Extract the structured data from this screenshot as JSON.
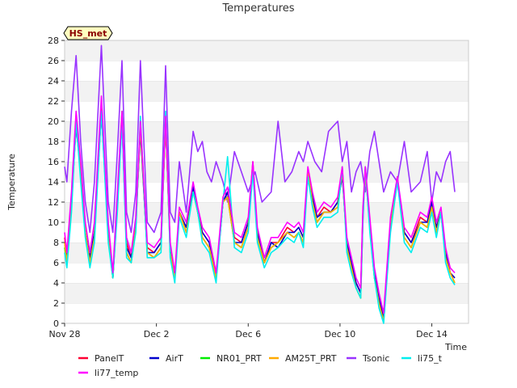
{
  "chart_data": {
    "type": "line",
    "title": "Temperatures",
    "xlabel": "Time",
    "ylabel": "Temperature",
    "badge": "HS_met",
    "xlim": [
      0,
      17.6
    ],
    "ylim": [
      0,
      28
    ],
    "yticks": [
      0,
      2,
      4,
      6,
      8,
      10,
      12,
      14,
      16,
      18,
      20,
      22,
      24,
      26,
      28
    ],
    "xticks": [
      {
        "x": 0,
        "label": "Nov 28"
      },
      {
        "x": 4,
        "label": "Dec 2"
      },
      {
        "x": 8,
        "label": "Dec 6"
      },
      {
        "x": 12,
        "label": "Dec 10"
      },
      {
        "x": 16,
        "label": "Dec 14"
      }
    ],
    "grid": "horizontal-bands",
    "legend_position": "bottom",
    "base_x": [
      0.0,
      0.1,
      0.3,
      0.5,
      0.7,
      0.9,
      1.1,
      1.3,
      1.6,
      1.9,
      2.1,
      2.3,
      2.5,
      2.7,
      2.9,
      3.1,
      3.3,
      3.6,
      3.9,
      4.2,
      4.4,
      4.6,
      4.8,
      5.0,
      5.3,
      5.6,
      5.8,
      6.0,
      6.3,
      6.6,
      6.9,
      7.1,
      7.4,
      7.7,
      8.0,
      8.2,
      8.4,
      8.7,
      9.0,
      9.3,
      9.7,
      10.0,
      10.2,
      10.4,
      10.6,
      10.8,
      11.0,
      11.3,
      11.6,
      11.9,
      12.1,
      12.3,
      12.5,
      12.7,
      12.9,
      13.0,
      13.1,
      13.3,
      13.5,
      13.7,
      13.9,
      14.2,
      14.5,
      14.8,
      15.1,
      15.5,
      15.8,
      16.0,
      16.2,
      16.4,
      16.6,
      16.8,
      17.0
    ],
    "tsonic_x": [
      0.0,
      0.1,
      0.3,
      0.5,
      0.7,
      0.9,
      1.1,
      1.3,
      1.6,
      1.9,
      2.1,
      2.3,
      2.5,
      2.7,
      2.9,
      3.1,
      3.3,
      3.6,
      3.9,
      4.2,
      4.4,
      4.6,
      4.8,
      5.0,
      5.3,
      5.6,
      5.8,
      6.0,
      6.2,
      6.4,
      6.6,
      6.9,
      7.1,
      7.4,
      7.7,
      8.0,
      8.3,
      8.6,
      9.0,
      9.3,
      9.6,
      9.9,
      10.2,
      10.4,
      10.6,
      10.9,
      11.2,
      11.5,
      11.9,
      12.1,
      12.3,
      12.5,
      12.7,
      12.9,
      13.1,
      13.3,
      13.5,
      13.7,
      13.9,
      14.2,
      14.5,
      14.8,
      15.1,
      15.5,
      15.8,
      16.0,
      16.2,
      16.4,
      16.6,
      16.8,
      17.0
    ],
    "series": [
      {
        "name": "PanelT",
        "color": "#ff0033",
        "x_ref": "base",
        "values": [
          8.5,
          6.5,
          12,
          20,
          15,
          9,
          6.5,
          9,
          21,
          9,
          4.5,
          12,
          20.5,
          8,
          6.5,
          10,
          19.5,
          7.5,
          7,
          8,
          20,
          7.5,
          4.5,
          11,
          9.5,
          13.5,
          11,
          9,
          8,
          4.5,
          12,
          13,
          8.5,
          8,
          10,
          16,
          9,
          6,
          8,
          8,
          9.5,
          9,
          9.5,
          8.5,
          15,
          12.5,
          10.5,
          11.5,
          11,
          12,
          15,
          8,
          6,
          4,
          3,
          11,
          15,
          10,
          5,
          2,
          0.5,
          10,
          14,
          9,
          8,
          10.5,
          10,
          12,
          9.5,
          11,
          7,
          5,
          4.5
        ]
      },
      {
        "name": "AirT",
        "color": "#0000cc",
        "x_ref": "base",
        "values": [
          8,
          6.5,
          12,
          19.5,
          15,
          9,
          6.5,
          9,
          21,
          9,
          4.5,
          12,
          20,
          7.5,
          6.5,
          10,
          19,
          7,
          7,
          8,
          20,
          7.5,
          4.5,
          11,
          9.5,
          13.5,
          11,
          9,
          8,
          4.5,
          12,
          13,
          8,
          8,
          10,
          15.5,
          9,
          6,
          8,
          7.5,
          9,
          9,
          9.5,
          8.5,
          14.5,
          12.5,
          10.5,
          11,
          11,
          12,
          14.5,
          8,
          6,
          4,
          3,
          11,
          15,
          10,
          5,
          2.5,
          0.5,
          10,
          14,
          9,
          8,
          10,
          10,
          12,
          9.5,
          11,
          7,
          5,
          4.5
        ]
      },
      {
        "name": "NR01_PRT",
        "color": "#00ee00",
        "x_ref": "base",
        "values": [
          7.5,
          6,
          11.5,
          20.5,
          14.5,
          9,
          6,
          8.5,
          22,
          8.5,
          4.5,
          12,
          21,
          7,
          6,
          9.5,
          20,
          7,
          6.5,
          7.5,
          20.5,
          7,
          4.5,
          11,
          9,
          13,
          11,
          8.5,
          7.5,
          4.5,
          12,
          12.5,
          8,
          7.5,
          9.5,
          15.5,
          8.5,
          6,
          7.5,
          8,
          9,
          8.5,
          9,
          8,
          15,
          12,
          10,
          11,
          11,
          11.5,
          15.5,
          7.5,
          5.5,
          3.5,
          2.5,
          10.5,
          15.5,
          9.5,
          4.5,
          2,
          0.2,
          9.5,
          14.5,
          8.5,
          7.5,
          10,
          9.5,
          11.5,
          9,
          11,
          6.5,
          5,
          4
        ]
      },
      {
        "name": "AM25T_PRT",
        "color": "#ffaa00",
        "x_ref": "base",
        "values": [
          8,
          6,
          11.5,
          20,
          14.5,
          9,
          6,
          8.5,
          21.5,
          8.5,
          4.5,
          11.5,
          20.5,
          7,
          6,
          9.5,
          19.5,
          7,
          6.5,
          7.5,
          20,
          7,
          4.5,
          11,
          9,
          13,
          11,
          8.5,
          7.5,
          4.5,
          12,
          12.5,
          8,
          7.5,
          9.5,
          15.5,
          8.5,
          6,
          7.5,
          8,
          9,
          8.5,
          9,
          8,
          15,
          12,
          10,
          11,
          11,
          11.5,
          15,
          7.5,
          5.5,
          3.5,
          2.5,
          10.5,
          15,
          9.5,
          4.5,
          2,
          0.2,
          9.5,
          14.5,
          8.5,
          7.5,
          10,
          9.5,
          11.5,
          9,
          11,
          6.5,
          5,
          4
        ]
      },
      {
        "name": "Tsonic",
        "color": "#9933ff",
        "x_ref": "tsonic",
        "values": [
          15.5,
          14,
          21,
          26.5,
          18,
          12,
          9,
          14,
          27.5,
          12,
          9,
          17,
          26,
          11,
          9,
          13,
          26,
          10,
          9,
          11,
          25.5,
          11,
          10,
          16,
          11,
          19,
          17,
          18,
          15,
          14,
          16,
          14,
          12,
          17,
          15,
          13,
          15,
          12,
          13,
          20,
          14,
          15,
          17,
          16,
          18,
          16,
          15,
          19,
          20,
          16,
          18,
          13,
          15,
          16,
          13,
          17,
          19,
          16,
          13,
          15,
          14,
          18,
          13,
          14,
          17,
          12,
          15,
          14,
          16,
          17,
          13
        ]
      },
      {
        "name": "li75_t",
        "color": "#00eeee",
        "x_ref": "base",
        "values": [
          7,
          5.5,
          11,
          20,
          14,
          8.5,
          5.5,
          8,
          21,
          8,
          4.5,
          11,
          20,
          6.5,
          6,
          9,
          20.5,
          6.5,
          6.5,
          7,
          21,
          6.5,
          4,
          10.5,
          8.5,
          13,
          11,
          8,
          7,
          4,
          12,
          16.5,
          7.5,
          7,
          9,
          15,
          8,
          5.5,
          7,
          7.5,
          8.5,
          8,
          9,
          7.5,
          14.5,
          11.5,
          9.5,
          10.5,
          10.5,
          11,
          15.5,
          7,
          5,
          3.5,
          2.5,
          10,
          15.5,
          9,
          4.5,
          1.5,
          0,
          9,
          14,
          8,
          7,
          9.5,
          9,
          11,
          8.5,
          11,
          6,
          4.5,
          3.8
        ]
      },
      {
        "name": "li77_temp",
        "color": "#ff00ff",
        "x_ref": "base",
        "values": [
          9,
          7,
          13,
          21,
          16,
          10,
          7,
          10,
          22.5,
          10,
          5,
          13,
          21,
          8.5,
          7,
          10.5,
          20,
          8,
          7.5,
          8.5,
          20.5,
          8,
          5,
          11.5,
          10,
          14,
          11.5,
          9.5,
          8.5,
          5,
          12.5,
          13.5,
          9,
          8.5,
          10.5,
          16,
          9.5,
          6.5,
          8.5,
          8.5,
          10,
          9.5,
          10,
          9,
          15.5,
          13,
          11,
          12,
          11.5,
          12.5,
          15.5,
          8.5,
          6.5,
          4.5,
          3.5,
          11.5,
          15.5,
          10.5,
          5.5,
          3,
          1,
          10.5,
          14.5,
          9.5,
          8.5,
          11,
          10.5,
          12.5,
          10,
          11.5,
          7.5,
          5.5,
          5
        ]
      }
    ]
  }
}
